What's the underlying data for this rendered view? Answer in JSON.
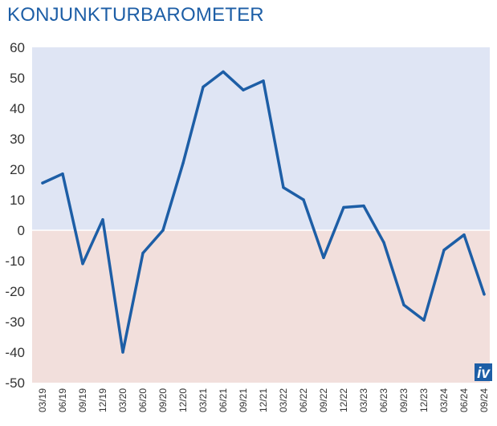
{
  "title": "KONJUNKTURBAROMETER",
  "logo_text": "iv",
  "colors": {
    "title": "#1d5ea6",
    "line": "#1d5ea6",
    "positive_bg": "#dfe5f4",
    "negative_bg": "#f2dfdc",
    "zero_line": "#ffffff",
    "logo_bg": "#1d5ea6"
  },
  "chart_data": {
    "type": "line",
    "title": "KONJUNKTURBAROMETER",
    "xlabel": "",
    "ylabel": "",
    "ylim": [
      -50,
      60
    ],
    "yticks": [
      60,
      50,
      40,
      30,
      20,
      10,
      0,
      -10,
      -20,
      -30,
      -40,
      -50
    ],
    "grid": false,
    "legend": "none",
    "categories": [
      "03/19",
      "06/19",
      "09/19",
      "12/19",
      "03/20",
      "06/20",
      "09/20",
      "12/20",
      "03/21",
      "06/21",
      "09/21",
      "12/21",
      "03/22",
      "06/22",
      "09/22",
      "12/22",
      "03/23",
      "06/23",
      "09/23",
      "12/23",
      "03/24",
      "06/24",
      "09/24"
    ],
    "series": [
      {
        "values": [
          15.5,
          18.5,
          -11,
          3.5,
          -40,
          -7.5,
          0,
          22,
          47,
          52,
          46,
          49,
          14,
          10,
          -9,
          7.5,
          8,
          -4,
          -24.5,
          -29.5,
          -6.5,
          -1.5,
          -21
        ]
      }
    ]
  }
}
